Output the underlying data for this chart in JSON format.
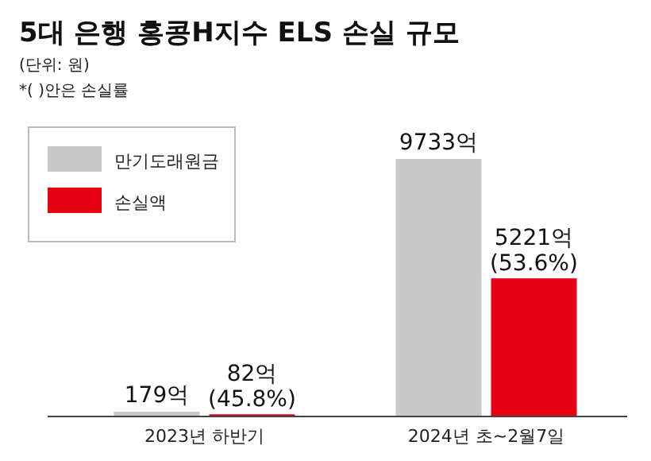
{
  "chart_data": {
    "type": "bar",
    "title": "5대 은행 홍콩H지수 ELS 손실 규모",
    "subtitle": "(단위: 원)",
    "annotations": [
      "*( )안은 손실률"
    ],
    "categories": [
      "2023년 하반기",
      "2024년 초~2월7일"
    ],
    "series": [
      {
        "name": "만기도래원금",
        "color": "#c8c8c8",
        "values": [
          179,
          9733
        ],
        "value_labels": [
          "179억",
          "9733억"
        ]
      },
      {
        "name": "손실액",
        "color": "#e60012",
        "values": [
          82,
          5221
        ],
        "value_labels": [
          "82억 (45.8%)",
          "5221억 (53.6%)"
        ]
      }
    ],
    "legend": "top left"
  }
}
